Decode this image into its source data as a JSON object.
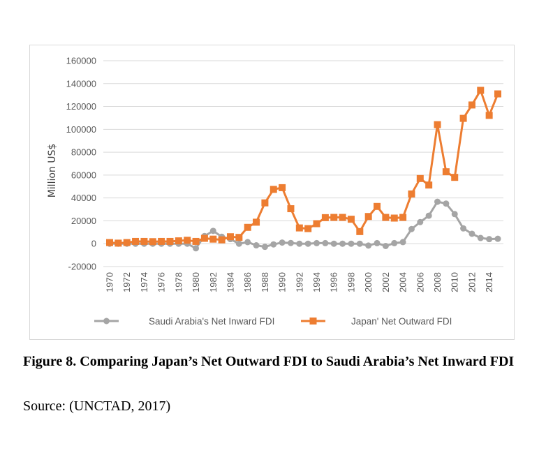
{
  "figure": {
    "caption": "Figure 8. Comparing Japan’s Net Outward FDI to Saudi Arabia’s Net Inward FDI",
    "source": "Source: (UNCTAD, 2017)"
  },
  "chart_data": {
    "type": "line",
    "title": "",
    "xlabel": "",
    "ylabel": "Million US$",
    "ylim": [
      -20000,
      160000
    ],
    "yticks": [
      -20000,
      0,
      20000,
      40000,
      60000,
      80000,
      100000,
      120000,
      140000,
      160000
    ],
    "ytick_labels": [
      "-20000",
      "0",
      "20000",
      "40000",
      "60000",
      "80000",
      "100000",
      "120000",
      "140000",
      "160000"
    ],
    "x": [
      1970,
      1971,
      1972,
      1973,
      1974,
      1975,
      1976,
      1977,
      1978,
      1979,
      1980,
      1981,
      1982,
      1983,
      1984,
      1985,
      1986,
      1987,
      1988,
      1989,
      1990,
      1991,
      1992,
      1993,
      1994,
      1995,
      1996,
      1997,
      1998,
      1999,
      2000,
      2001,
      2002,
      2003,
      2004,
      2005,
      2006,
      2007,
      2008,
      2009,
      2010,
      2011,
      2012,
      2013,
      2014,
      2015
    ],
    "xtick_labels": [
      "1970",
      "1972",
      "1974",
      "1976",
      "1978",
      "1980",
      "1982",
      "1984",
      "1986",
      "1988",
      "1990",
      "1992",
      "1994",
      "1996",
      "1998",
      "2000",
      "2002",
      "2004",
      "2006",
      "2008",
      "2010",
      "2012",
      "2014"
    ],
    "grid": true,
    "legend": "bottom",
    "series": [
      {
        "name": "Saudi Arabia's Net Inward FDI",
        "color": "#a5a5a5",
        "marker": "circle",
        "values": [
          0,
          0,
          0,
          0,
          0,
          0,
          0,
          0,
          0,
          0,
          -4000,
          6700,
          11200,
          6100,
          4000,
          0,
          1400,
          -1400,
          -2700,
          -600,
          1000,
          600,
          0,
          0,
          500,
          500,
          0,
          0,
          0,
          0,
          -1600,
          500,
          -2000,
          500,
          1400,
          12800,
          18900,
          24500,
          36700,
          35100,
          25900,
          13400,
          8700,
          5000,
          4000,
          4300
        ]
      },
      {
        "name": "Japan' Net Outward FDI",
        "color": "#ed7d31",
        "marker": "square",
        "values": [
          1000,
          500,
          1000,
          2000,
          2000,
          1800,
          2000,
          2000,
          2500,
          3000,
          2000,
          4700,
          4000,
          3400,
          6100,
          5500,
          14300,
          18800,
          35700,
          47500,
          49000,
          30600,
          13800,
          13200,
          17500,
          22800,
          23000,
          23000,
          21400,
          10600,
          23800,
          32600,
          23000,
          22400,
          23000,
          43500,
          57000,
          51300,
          104100,
          62900,
          58000,
          109600,
          121300,
          134100,
          112200,
          131000
        ]
      }
    ]
  }
}
